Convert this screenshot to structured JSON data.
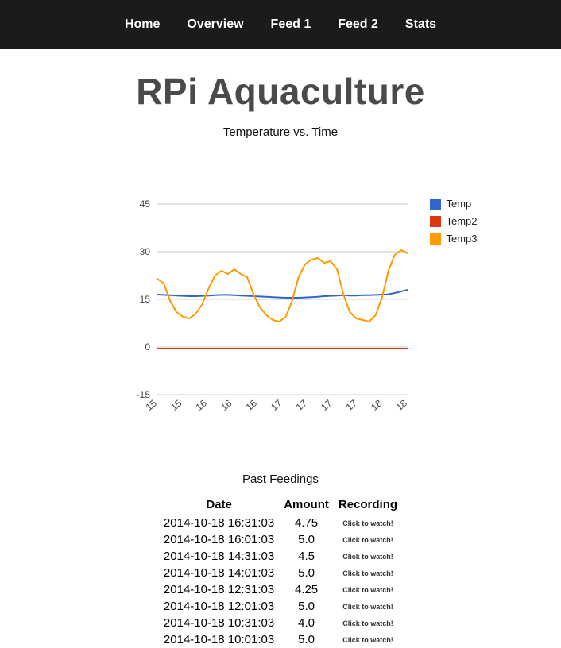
{
  "nav": {
    "items": [
      {
        "label": "Home"
      },
      {
        "label": "Overview"
      },
      {
        "label": "Feed 1"
      },
      {
        "label": "Feed 2"
      },
      {
        "label": "Stats"
      }
    ]
  },
  "header": {
    "title": "RPi Aquaculture",
    "subtitle": "Temperature vs. Time"
  },
  "chart_data": {
    "type": "line",
    "title": "Temperature vs. Time",
    "xlabel": "",
    "ylabel": "",
    "ylim": [
      -15,
      48
    ],
    "y_ticks": [
      45,
      30,
      15,
      0,
      -15
    ],
    "x_tick_labels": [
      "15",
      "15",
      "16",
      "16",
      "16",
      "17",
      "17",
      "17",
      "17",
      "18",
      "18"
    ],
    "grid": true,
    "legend_position": "right",
    "series": [
      {
        "name": "Temp",
        "color": "#3366cc",
        "values": [
          16.5,
          16.4,
          16.3,
          16.2,
          16.1,
          16.0,
          16.0,
          16.1,
          16.2,
          16.3,
          16.4,
          16.4,
          16.3,
          16.2,
          16.1,
          16.0,
          15.9,
          15.8,
          15.7,
          15.6,
          15.5,
          15.5,
          15.5,
          15.6,
          15.7,
          15.8,
          16.0,
          16.1,
          16.2,
          16.3,
          16.2,
          16.2,
          16.3,
          16.3,
          16.4,
          16.5,
          16.6,
          17.0,
          17.5,
          18.0
        ]
      },
      {
        "name": "Temp2",
        "color": "#dc3912",
        "values": [
          -0.5,
          -0.5,
          -0.5,
          -0.5,
          -0.5,
          -0.5,
          -0.5,
          -0.5,
          -0.5,
          -0.5,
          -0.5,
          -0.5,
          -0.5,
          -0.5,
          -0.5,
          -0.5,
          -0.5,
          -0.5,
          -0.5,
          -0.5,
          -0.5,
          -0.5,
          -0.5,
          -0.5,
          -0.5,
          -0.5,
          -0.5,
          -0.5,
          -0.5,
          -0.5,
          -0.5,
          -0.5,
          -0.5,
          -0.5,
          -0.5,
          -0.5,
          -0.5,
          -0.5,
          -0.5,
          -0.5
        ]
      },
      {
        "name": "Temp3",
        "color": "#ff9900",
        "values": [
          21.5,
          20.0,
          14.5,
          11.0,
          9.5,
          9.0,
          10.5,
          13.5,
          18.5,
          22.5,
          24.0,
          23.0,
          24.5,
          23.0,
          22.0,
          16.5,
          12.5,
          10.0,
          8.5,
          8.0,
          9.5,
          14.5,
          22.0,
          26.0,
          27.5,
          28.0,
          26.5,
          27.0,
          24.5,
          16.5,
          11.0,
          9.0,
          8.5,
          8.0,
          10.0,
          15.5,
          24.0,
          29.0,
          30.5,
          29.5
        ]
      }
    ]
  },
  "feedings": {
    "title": "Past Feedings",
    "columns": [
      "Date",
      "Amount",
      "Recording"
    ],
    "link_label": "Click to watch!",
    "rows": [
      {
        "date": "2014-10-18 16:31:03",
        "amount": "4.75"
      },
      {
        "date": "2014-10-18 16:01:03",
        "amount": "5.0"
      },
      {
        "date": "2014-10-18 14:31:03",
        "amount": "4.5"
      },
      {
        "date": "2014-10-18 14:01:03",
        "amount": "5.0"
      },
      {
        "date": "2014-10-18 12:31:03",
        "amount": "4.25"
      },
      {
        "date": "2014-10-18 12:01:03",
        "amount": "5.0"
      },
      {
        "date": "2014-10-18 10:31:03",
        "amount": "4.0"
      },
      {
        "date": "2014-10-18 10:01:03",
        "amount": "5.0"
      }
    ]
  },
  "colors": {
    "navbar_bg": "#1b1b1b",
    "heading_text": "#4a4a4a",
    "gridline": "#cccccc"
  }
}
